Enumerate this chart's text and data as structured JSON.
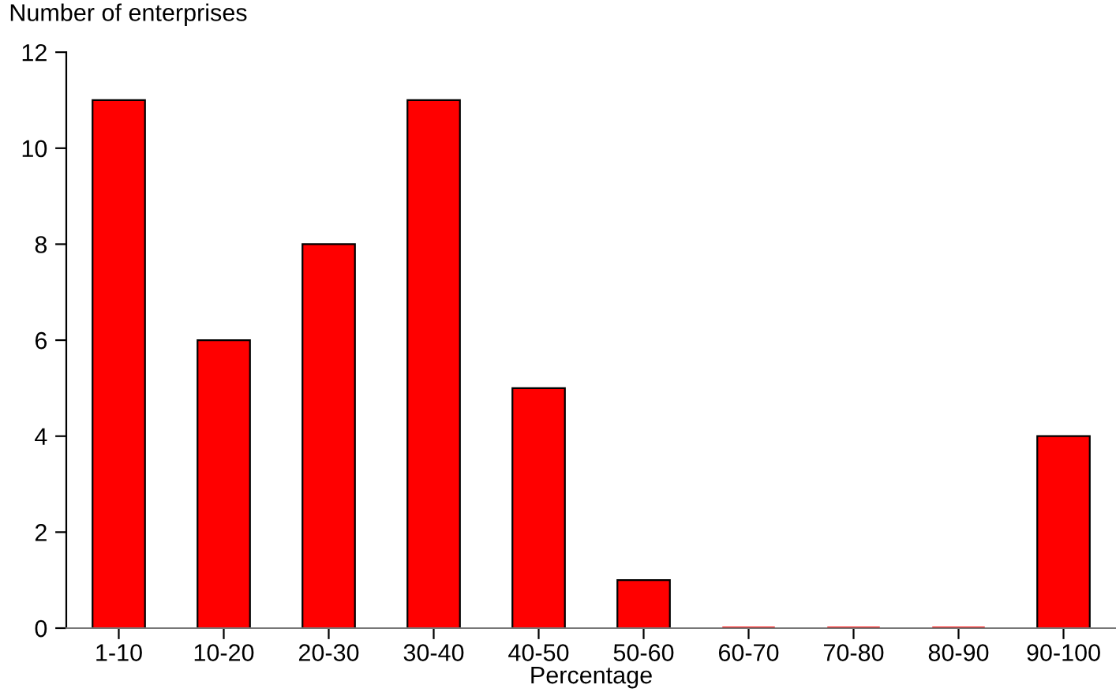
{
  "chart_data": {
    "type": "bar",
    "ylabel": "Number of enterprises",
    "xlabel": "Percentage",
    "categories": [
      "1-10",
      "10-20",
      "20-30",
      "30-40",
      "40-50",
      "50-60",
      "60-70",
      "70-80",
      "80-90",
      "90-100"
    ],
    "values": [
      11,
      6,
      8,
      11,
      5,
      1,
      0,
      0,
      0,
      4
    ],
    "color": "#ff0000",
    "ylim": [
      0,
      12
    ],
    "yticks": [
      0,
      2,
      4,
      6,
      8,
      10,
      12
    ],
    "grid": false
  }
}
